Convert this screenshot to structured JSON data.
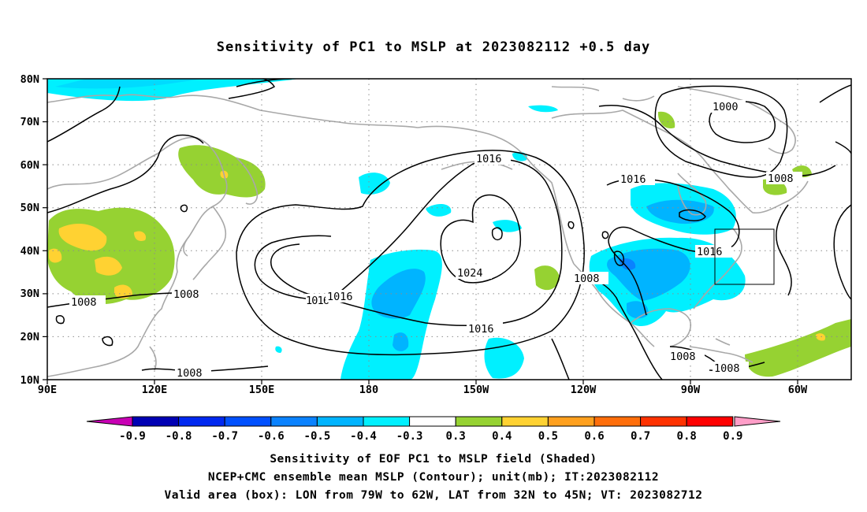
{
  "title": "Sensitivity of PC1 to MSLP at 2023082112 +0.5 day",
  "map": {
    "lat_labels": [
      "80N",
      "70N",
      "60N",
      "50N",
      "40N",
      "30N",
      "20N",
      "10N"
    ],
    "lon_labels": [
      "90E",
      "120E",
      "150E",
      "180",
      "150W",
      "120W",
      "90W",
      "60W"
    ],
    "contour_labels": {
      "c1000": "1000",
      "c1016a": "1016",
      "c1016b": "1016",
      "c1016c": "1016",
      "c1016d": "1016",
      "c1016e": "1016",
      "c1016f": "1016",
      "c1024": "1024",
      "c1008a": "1008",
      "c1008b": "1008",
      "c1008c": "1008",
      "c1008d": "1008",
      "c1008e": "1008",
      "c1008f": "1008",
      "c1008g": "1008"
    },
    "valid_box": {
      "lon_min": -79,
      "lon_max": -62,
      "lat_min": 32,
      "lat_max": 45
    }
  },
  "colorbar": {
    "labels": [
      "-0.9",
      "-0.8",
      "-0.7",
      "-0.6",
      "-0.5",
      "-0.4",
      "-0.3",
      "0.3",
      "0.4",
      "0.5",
      "0.6",
      "0.7",
      "0.8",
      "0.9"
    ],
    "colors": [
      "#0000b4",
      "#0028f0",
      "#0050ff",
      "#0a82ff",
      "#00b4ff",
      "#00f0ff",
      "#ffffff",
      "#96d232",
      "#ffd232",
      "#ffa01e",
      "#ff6e0a",
      "#ff3200",
      "#ff0000"
    ],
    "left_arrow_color": "#c800b4",
    "right_arrow_color": "#ff9ec8"
  },
  "captions": {
    "line1": "Sensitivity of EOF PC1 to MSLP field (Shaded)",
    "line2": "NCEP+CMC ensemble mean MSLP (Contour); unit(mb); IT:2023082112",
    "line3": "Valid area (box): LON from 79W to 62W, LAT from 32N to 45N; VT: 2023082712"
  }
}
